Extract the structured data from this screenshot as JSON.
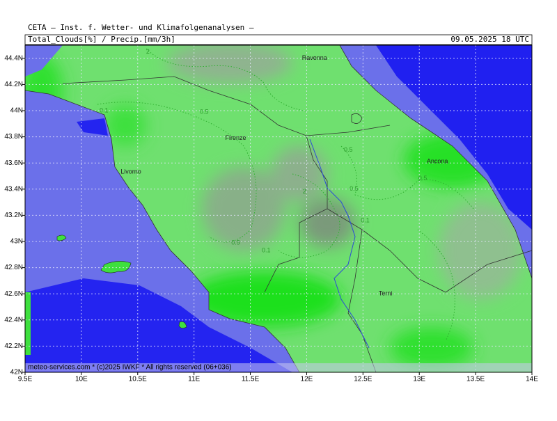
{
  "header": {
    "title": "CETA — Inst. f. Wetter- und Klimafolgenanalysen —",
    "variable": "Total_Clouds[%] / Precip.[mm/3h]",
    "valid_time": "09.05.2025 18 UTC"
  },
  "map": {
    "xlim": [
      9.5,
      14
    ],
    "ylim": [
      42,
      44.5
    ],
    "xticks": [
      {
        "value": 9.5,
        "label": "9.5E"
      },
      {
        "value": 10,
        "label": "10E"
      },
      {
        "value": 10.5,
        "label": "10.5E"
      },
      {
        "value": 11,
        "label": "11E"
      },
      {
        "value": 11.5,
        "label": "11.5E"
      },
      {
        "value": 12,
        "label": "12E"
      },
      {
        "value": 12.5,
        "label": "12.5E"
      },
      {
        "value": 13,
        "label": "13E"
      },
      {
        "value": 13.5,
        "label": "13.5E"
      },
      {
        "value": 14,
        "label": "14E"
      }
    ],
    "yticks": [
      {
        "value": 42,
        "label": "42N"
      },
      {
        "value": 42.2,
        "label": "42.2N"
      },
      {
        "value": 42.4,
        "label": "42.4N"
      },
      {
        "value": 42.6,
        "label": "42.6N"
      },
      {
        "value": 42.8,
        "label": "42.8N"
      },
      {
        "value": 43,
        "label": "43N"
      },
      {
        "value": 43.2,
        "label": "43.2N"
      },
      {
        "value": 43.4,
        "label": "43.4N"
      },
      {
        "value": 43.6,
        "label": "43.6N"
      },
      {
        "value": 43.8,
        "label": "43.8N"
      },
      {
        "value": 44,
        "label": "44N"
      },
      {
        "value": 44.2,
        "label": "44.2N"
      },
      {
        "value": 44.4,
        "label": "44.4N"
      }
    ],
    "grid": true,
    "cities": [
      {
        "name": "Ravenna",
        "lon": 12.07,
        "lat": 44.4
      },
      {
        "name": "Firenze",
        "lon": 11.37,
        "lat": 43.79
      },
      {
        "name": "Livorno",
        "lon": 10.44,
        "lat": 43.53
      },
      {
        "name": "Ancona",
        "lon": 13.16,
        "lat": 43.61
      },
      {
        "name": "Terni",
        "lon": 12.7,
        "lat": 42.6
      }
    ],
    "contour_labels": [
      {
        "text": "2",
        "lon": 10.59,
        "lat": 44.45
      },
      {
        "text": "0.1",
        "lon": 10.2,
        "lat": 44.0
      },
      {
        "text": "0.5",
        "lon": 11.09,
        "lat": 43.99
      },
      {
        "text": "0.5",
        "lon": 11.37,
        "lat": 42.99
      },
      {
        "text": "0.1",
        "lon": 11.64,
        "lat": 42.93
      },
      {
        "text": "0.5",
        "lon": 12.37,
        "lat": 43.7
      },
      {
        "text": "2",
        "lon": 11.98,
        "lat": 43.38
      },
      {
        "text": "0.5",
        "lon": 12.42,
        "lat": 43.4
      },
      {
        "text": "0.1",
        "lon": 12.52,
        "lat": 43.16
      },
      {
        "text": "0.5",
        "lon": 13.03,
        "lat": 43.48
      }
    ]
  },
  "footer": "meteo-services.com * (c)2025 IWKF * All rights reserved (06+036)"
}
